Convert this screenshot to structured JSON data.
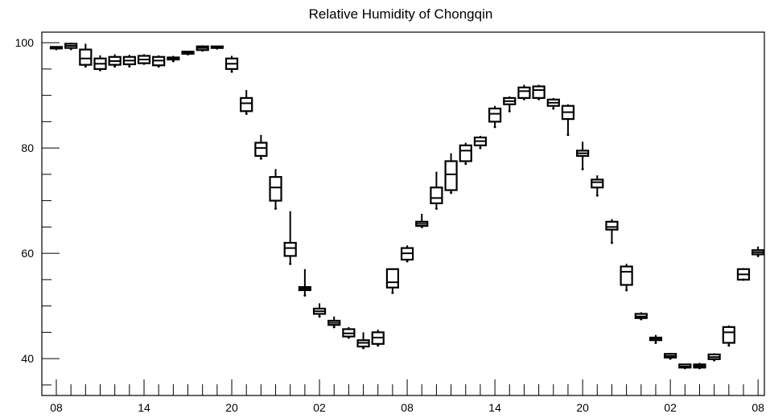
{
  "chart_data": {
    "type": "boxplot",
    "title": "Relative Humidity of Chongqin",
    "xlabel": "",
    "ylabel": "",
    "ylim": [
      33,
      102
    ],
    "y_ticks": [
      40,
      60,
      80,
      100
    ],
    "x_tick_labels": [
      "08",
      "14",
      "20",
      "02",
      "08",
      "14",
      "20",
      "02",
      "08"
    ],
    "x_tick_label_hours": [
      0,
      6,
      12,
      18,
      24,
      30,
      36,
      42,
      48
    ],
    "grid": false,
    "line_color": "#000000",
    "boxes": [
      {
        "hour": 0,
        "min": 98.8,
        "q1": 98.9,
        "median": 99.0,
        "q3": 99.2,
        "max": 99.3
      },
      {
        "hour": 1,
        "min": 98.8,
        "q1": 99.0,
        "median": 99.4,
        "q3": 99.8,
        "max": 100.0
      },
      {
        "hour": 2,
        "min": 95.5,
        "q1": 95.8,
        "median": 97.0,
        "q3": 98.7,
        "max": 99.8
      },
      {
        "hour": 3,
        "min": 94.8,
        "q1": 95.0,
        "median": 96.0,
        "q3": 97.0,
        "max": 97.6
      },
      {
        "hour": 4,
        "min": 95.5,
        "q1": 95.8,
        "median": 96.5,
        "q3": 97.3,
        "max": 97.8
      },
      {
        "hour": 5,
        "min": 95.5,
        "q1": 95.9,
        "median": 96.6,
        "q3": 97.3,
        "max": 97.7
      },
      {
        "hour": 6,
        "min": 96.0,
        "q1": 96.1,
        "median": 96.8,
        "q3": 97.5,
        "max": 97.8
      },
      {
        "hour": 7,
        "min": 95.5,
        "q1": 95.7,
        "median": 96.6,
        "q3": 97.3,
        "max": 97.6
      },
      {
        "hour": 8,
        "min": 96.5,
        "q1": 96.8,
        "median": 97.0,
        "q3": 97.2,
        "max": 97.5
      },
      {
        "hour": 9,
        "min": 97.8,
        "q1": 97.9,
        "median": 98.1,
        "q3": 98.3,
        "max": 98.4
      },
      {
        "hour": 10,
        "min": 98.5,
        "q1": 98.6,
        "median": 99.0,
        "q3": 99.3,
        "max": 99.5
      },
      {
        "hour": 11,
        "min": 98.9,
        "q1": 99.0,
        "median": 99.2,
        "q3": 99.3,
        "max": 99.4
      },
      {
        "hour": 12,
        "min": 94.5,
        "q1": 95.0,
        "median": 96.0,
        "q3": 97.0,
        "max": 97.5
      },
      {
        "hour": 13,
        "min": 86.5,
        "q1": 87.0,
        "median": 88.5,
        "q3": 89.5,
        "max": 91.0
      },
      {
        "hour": 14,
        "min": 78.0,
        "q1": 78.5,
        "median": 80.0,
        "q3": 81.0,
        "max": 82.5
      },
      {
        "hour": 15,
        "min": 68.5,
        "q1": 70.0,
        "median": 72.5,
        "q3": 74.5,
        "max": 76.0
      },
      {
        "hour": 16,
        "min": 58.0,
        "q1": 59.5,
        "median": 61.0,
        "q3": 62.0,
        "max": 68.0
      },
      {
        "hour": 17,
        "min": 52.0,
        "q1": 53.0,
        "median": 53.3,
        "q3": 53.6,
        "max": 57.0
      },
      {
        "hour": 18,
        "min": 48.0,
        "q1": 48.5,
        "median": 49.0,
        "q3": 49.5,
        "max": 50.5
      },
      {
        "hour": 19,
        "min": 46.0,
        "q1": 46.4,
        "median": 46.8,
        "q3": 47.2,
        "max": 48.0
      },
      {
        "hour": 20,
        "min": 44.0,
        "q1": 44.2,
        "median": 44.8,
        "q3": 45.6,
        "max": 46.0
      },
      {
        "hour": 21,
        "min": 42.0,
        "q1": 42.3,
        "median": 43.0,
        "q3": 43.5,
        "max": 45.0
      },
      {
        "hour": 22,
        "min": 42.5,
        "q1": 42.8,
        "median": 44.0,
        "q3": 45.0,
        "max": 45.5
      },
      {
        "hour": 23,
        "min": 52.5,
        "q1": 53.5,
        "median": 54.5,
        "q3": 57.0,
        "max": 57.0
      },
      {
        "hour": 24,
        "min": 58.5,
        "q1": 58.8,
        "median": 60.0,
        "q3": 61.0,
        "max": 61.5
      },
      {
        "hour": 25,
        "min": 65.0,
        "q1": 65.2,
        "median": 65.6,
        "q3": 66.0,
        "max": 67.5
      },
      {
        "hour": 26,
        "min": 68.5,
        "q1": 69.5,
        "median": 70.5,
        "q3": 72.5,
        "max": 75.5
      },
      {
        "hour": 27,
        "min": 71.5,
        "q1": 72.0,
        "median": 75.0,
        "q3": 77.5,
        "max": 79.0
      },
      {
        "hour": 28,
        "min": 77.0,
        "q1": 77.5,
        "median": 79.5,
        "q3": 80.5,
        "max": 81.0
      },
      {
        "hour": 29,
        "min": 80.0,
        "q1": 80.5,
        "median": 81.3,
        "q3": 82.0,
        "max": 82.3
      },
      {
        "hour": 30,
        "min": 84.0,
        "q1": 85.0,
        "median": 86.5,
        "q3": 87.5,
        "max": 88.0
      },
      {
        "hour": 31,
        "min": 87.0,
        "q1": 88.3,
        "median": 88.9,
        "q3": 89.5,
        "max": 89.8
      },
      {
        "hour": 32,
        "min": 89.3,
        "q1": 89.5,
        "median": 90.8,
        "q3": 91.5,
        "max": 92.0
      },
      {
        "hour": 33,
        "min": 89.3,
        "q1": 89.5,
        "median": 91.0,
        "q3": 91.7,
        "max": 92.0
      },
      {
        "hour": 34,
        "min": 87.5,
        "q1": 88.0,
        "median": 88.6,
        "q3": 89.2,
        "max": 89.5
      },
      {
        "hour": 35,
        "min": 82.5,
        "q1": 85.5,
        "median": 86.8,
        "q3": 88.0,
        "max": 88.3
      },
      {
        "hour": 36,
        "min": 76.0,
        "q1": 78.5,
        "median": 79.0,
        "q3": 79.5,
        "max": 81.2
      },
      {
        "hour": 37,
        "min": 71.0,
        "q1": 72.5,
        "median": 73.5,
        "q3": 74.0,
        "max": 74.8
      },
      {
        "hour": 38,
        "min": 62.0,
        "q1": 64.5,
        "median": 65.0,
        "q3": 66.0,
        "max": 66.5
      },
      {
        "hour": 39,
        "min": 53.0,
        "q1": 54.0,
        "median": 56.5,
        "q3": 57.5,
        "max": 58.0
      },
      {
        "hour": 40,
        "min": 47.5,
        "q1": 47.7,
        "median": 48.0,
        "q3": 48.5,
        "max": 48.8
      },
      {
        "hour": 41,
        "min": 43.0,
        "q1": 43.5,
        "median": 43.8,
        "q3": 44.0,
        "max": 44.5
      },
      {
        "hour": 42,
        "min": 40.0,
        "q1": 40.2,
        "median": 40.5,
        "q3": 40.9,
        "max": 41.1
      },
      {
        "hour": 43,
        "min": 38.2,
        "q1": 38.3,
        "median": 38.5,
        "q3": 38.9,
        "max": 39.0
      },
      {
        "hour": 44,
        "min": 38.2,
        "q1": 38.3,
        "median": 38.6,
        "q3": 38.9,
        "max": 39.2
      },
      {
        "hour": 45,
        "min": 39.7,
        "q1": 39.9,
        "median": 40.3,
        "q3": 40.8,
        "max": 41.0
      },
      {
        "hour": 46,
        "min": 42.5,
        "q1": 43.0,
        "median": 45.0,
        "q3": 46.0,
        "max": 46.3
      },
      {
        "hour": 47,
        "min": 55.0,
        "q1": 55.0,
        "median": 56.0,
        "q3": 57.0,
        "max": 57.2
      },
      {
        "hour": 48,
        "min": 59.5,
        "q1": 59.8,
        "median": 60.2,
        "q3": 60.6,
        "max": 61.3
      }
    ]
  }
}
